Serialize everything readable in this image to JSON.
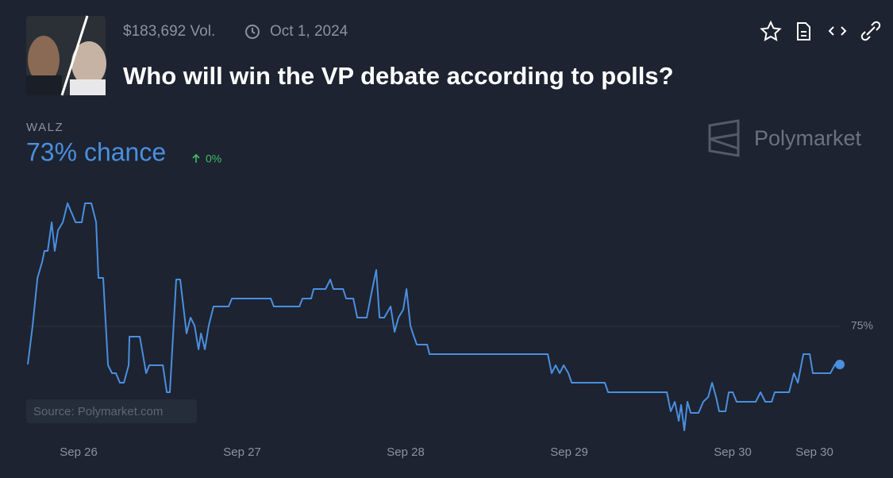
{
  "header": {
    "volume": "$183,692 Vol.",
    "date": "Oct 1, 2024",
    "title": "Who will win the VP debate according to polls?"
  },
  "chart_data": {
    "type": "line",
    "headline": "73% chance",
    "change": "0%",
    "brand": "Polymarket",
    "source": "Source: Polymarket.com",
    "series": [
      {
        "name": "WALZ",
        "color": "#4a8fe0",
        "values": [
          73,
          75,
          77.54,
          78.38,
          78.96,
          78.96,
          80.46,
          78.96,
          80.04,
          80.46,
          81.46,
          80.88,
          80.46,
          80.46,
          81.46,
          81.46,
          80.46,
          77.54,
          77.54,
          72.96,
          72.54,
          72.54,
          72.04,
          72.04,
          72.96,
          74.46,
          74.46,
          72.54,
          72.96,
          72.96,
          71.54,
          71.54,
          77.46,
          77.46,
          74.63,
          75.46,
          75.04,
          73.79,
          74.63,
          73.79,
          75.04,
          76.04,
          76.04,
          76.46,
          76.46,
          76.04,
          76.04,
          76.46,
          76.46,
          76.96,
          76.96,
          77.46,
          76.96,
          76.96,
          76.46,
          76.46,
          75.46,
          75.46,
          76.96,
          77.96,
          75.46,
          75.46,
          76.04,
          74.71,
          75.46,
          75.88,
          76.96,
          75.04,
          74.63,
          74.04,
          74.04,
          73.54,
          73.54,
          72.54,
          72.96,
          72.54,
          72.96,
          72.54,
          72.04,
          72.04,
          71.54,
          71.54,
          70.54,
          71.04,
          70.04,
          70.88,
          69.54,
          71.04,
          70.46,
          70.46,
          71.04,
          71.29,
          72.04,
          71.29,
          70.54,
          70.54,
          71.54,
          71.54,
          71.04,
          71.04,
          71.54,
          71.04,
          71.04,
          71.54,
          71.54,
          72.54,
          72.04,
          73.54,
          73.54,
          72.54,
          72.54,
          73,
          73
        ]
      }
    ],
    "x": [
      25.689,
      25.718,
      25.748,
      25.777,
      25.791,
      25.811,
      25.835,
      25.854,
      25.874,
      25.903,
      25.932,
      25.961,
      25.981,
      26.019,
      26.039,
      26.078,
      26.107,
      26.121,
      26.15,
      26.18,
      26.204,
      26.228,
      26.252,
      26.277,
      26.306,
      26.311,
      26.374,
      26.413,
      26.432,
      26.515,
      26.539,
      26.558,
      26.597,
      26.621,
      26.66,
      26.684,
      26.709,
      26.733,
      26.748,
      26.772,
      26.796,
      26.825,
      26.917,
      26.937,
      27.175,
      27.194,
      27.35,
      27.369,
      27.422,
      27.437,
      27.51,
      27.539,
      27.558,
      27.617,
      27.636,
      27.68,
      27.704,
      27.762,
      27.796,
      27.82,
      27.84,
      27.869,
      27.908,
      27.932,
      27.956,
      27.985,
      28.005,
      28.029,
      28.044,
      28.068,
      28.131,
      28.146,
      28.869,
      28.893,
      28.917,
      28.942,
      28.966,
      28.995,
      29.015,
      29.218,
      29.238,
      29.597,
      29.621,
      29.646,
      29.67,
      29.684,
      29.704,
      29.723,
      29.743,
      29.791,
      29.82,
      29.85,
      29.874,
      29.898,
      29.917,
      29.956,
      29.976,
      30,
      30.024,
      30.141,
      30.17,
      30.199,
      30.238,
      30.257,
      30.345,
      30.374,
      30.398,
      30.432,
      30.471,
      30.49,
      30.597,
      30.626,
      30.655
    ],
    "xlim": [
      25.689,
      30.655
    ],
    "ylim": [
      69,
      82
    ],
    "xticks": [
      {
        "value": 26,
        "label": "Sep 26"
      },
      {
        "value": 27,
        "label": "Sep 27"
      },
      {
        "value": 28,
        "label": "Sep 28"
      },
      {
        "value": 29,
        "label": "Sep 29"
      },
      {
        "value": 30,
        "label": "Sep 30"
      },
      {
        "value": 30.5,
        "label": "Sep 30"
      }
    ],
    "yticks": [
      {
        "value": 75,
        "label": "75%"
      }
    ],
    "grid": true
  }
}
